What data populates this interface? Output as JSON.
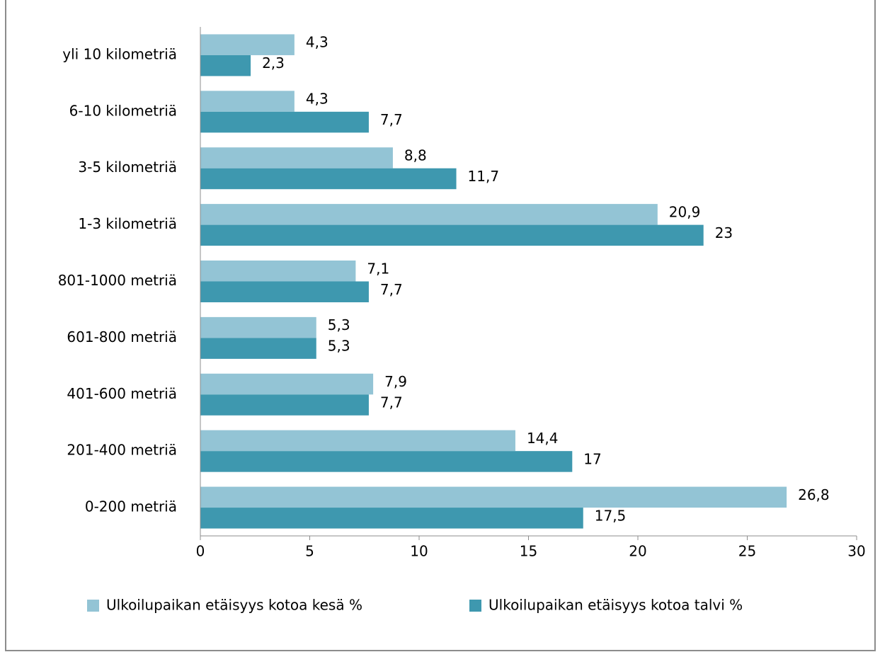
{
  "chart_data": {
    "type": "hbar",
    "categories": [
      "yli 10 kilometriä",
      "6-10 kilometriä",
      "3-5 kilometriä",
      "1-3 kilometriä",
      "801-1000 metriä",
      "601-800 metriä",
      "401-600 metriä",
      "201-400 metriä",
      "0-200 metriä"
    ],
    "series": [
      {
        "name": "Ulkoilupaikan etäisyys kotoa kesä %",
        "color": "#93c4d5",
        "values": [
          4.3,
          4.3,
          8.8,
          20.9,
          7.1,
          5.3,
          7.9,
          14.4,
          26.8
        ],
        "value_labels": [
          "4,3",
          "4,3",
          "8,8",
          "20,9",
          "7,1",
          "5,3",
          "7,9",
          "14,4",
          "26,8"
        ]
      },
      {
        "name": "Ulkoilupaikan etäisyys kotoa talvi %",
        "color": "#3e98af",
        "values": [
          2.3,
          7.7,
          11.7,
          23,
          7.7,
          5.3,
          7.7,
          17,
          17.5
        ],
        "value_labels": [
          "2,3",
          "7,7",
          "11,7",
          "23",
          "7,7",
          "5,3",
          "7,7",
          "17",
          "17,5"
        ]
      }
    ],
    "xlim": [
      0,
      30
    ],
    "xticks": [
      0,
      5,
      10,
      15,
      20,
      25,
      30
    ],
    "legend": "bottom"
  }
}
